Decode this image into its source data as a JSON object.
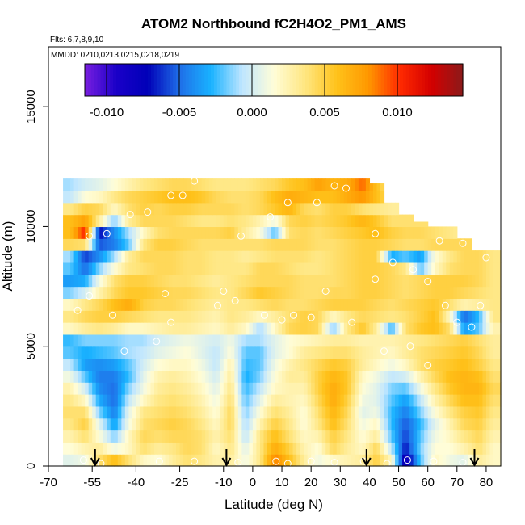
{
  "chart_data": {
    "type": "heatmap",
    "title": "ATOM2 Northbound fC2H4O2_PM1_AMS",
    "flights_label": "Flts: 6,7,8,9,10",
    "dates_label": "MMDD: 0210,0213,0215,0218,0219",
    "xlabel": "Latitude (deg N)",
    "ylabel": "Altitude (m)",
    "xlim": [
      -70,
      85
    ],
    "ylim": [
      0,
      17500
    ],
    "x_tick_labels": [
      "-70",
      "-55",
      "-40",
      "-25",
      "-10",
      "0",
      "10",
      "20",
      "30",
      "40",
      "50",
      "60",
      "70",
      "80"
    ],
    "x_tick_values": [
      -70,
      -55,
      -40,
      -25,
      -10,
      0,
      10,
      20,
      30,
      40,
      50,
      60,
      70,
      80
    ],
    "y_tick_labels": [
      "0",
      "5000",
      "10000",
      "15000"
    ],
    "y_tick_values": [
      0,
      5000,
      10000,
      15000
    ],
    "colorbar": {
      "range": [
        -0.0115,
        0.0145
      ],
      "tick_labels": [
        "-0.010",
        "-0.005",
        "0.000",
        "0.005",
        "0.010"
      ],
      "tick_values": [
        -0.01,
        -0.005,
        0.0,
        0.005,
        0.01
      ],
      "colors": [
        "#7a1fe0",
        "#1a00c8",
        "#0000b8",
        "#1f6fe8",
        "#19b2ff",
        "#bfe6ff",
        "#fffdd8",
        "#ffe680",
        "#ffc21a",
        "#ff9800",
        "#ff2a00",
        "#d40000",
        "#8b1a1a"
      ]
    },
    "altitude_levels_m": [
      250,
      750,
      1250,
      1750,
      2250,
      2750,
      3250,
      3750,
      4250,
      4750,
      5250,
      5750,
      6250,
      6750,
      7250,
      7750,
      8250,
      8750,
      9250,
      9750,
      10250,
      10750,
      11250,
      11750
    ],
    "latitude_bins": [
      -62.5,
      -57.5,
      -52.5,
      -47.5,
      -42.5,
      -37.5,
      -32.5,
      -27.5,
      -22.5,
      -17.5,
      -12.5,
      -7.5,
      -2.5,
      2.5,
      7.5,
      12.5,
      17.5,
      22.5,
      27.5,
      32.5,
      37.5,
      42.5,
      47.5,
      52.5,
      57.5,
      62.5,
      67.5,
      72.5,
      77.5,
      82.5
    ],
    "grid_values": [
      [
        0.0005,
        0.001,
        0.004,
        0.006,
        0.004,
        0.002,
        0.0015,
        0.003,
        0.004,
        0.0035,
        0.0025,
        0.003,
        0.001,
        0.0035,
        0.0085,
        0.006,
        0.003,
        0.001,
        0.002,
        0.0025,
        0.003,
        0.005,
        0.002,
        -0.009,
        -0.002,
        0.002,
        0.001,
        0.0005,
        0.003,
        0.002
      ],
      [
        0.0015,
        0.0025,
        0.003,
        0.001,
        0.002,
        0.004,
        0.003,
        0.0035,
        0.0045,
        0.004,
        0.002,
        0.0035,
        0.0005,
        0.0035,
        0.007,
        0.005,
        0.0025,
        0.0015,
        0.0045,
        0.003,
        0.002,
        0.0045,
        -0.0005,
        -0.007,
        -0.0015,
        0.0015,
        0.0015,
        0.0025,
        0.004,
        0.002
      ],
      [
        0.0025,
        0.004,
        0.0015,
        -0.0015,
        0.002,
        0.0045,
        0.004,
        0.0045,
        0.0045,
        0.004,
        0.0025,
        0.004,
        -0.0005,
        0.0035,
        0.006,
        0.004,
        0.002,
        0.0025,
        0.005,
        0.0035,
        0.0015,
        0.003,
        -0.002,
        -0.006,
        -0.002,
        0.001,
        0.002,
        0.0035,
        0.0045,
        0.0025
      ],
      [
        0.0035,
        0.005,
        0.0005,
        -0.0035,
        0.001,
        0.004,
        0.0045,
        0.005,
        0.0045,
        0.0035,
        0.002,
        0.0045,
        -0.001,
        0.0025,
        0.005,
        0.0035,
        0.0015,
        0.0035,
        0.006,
        0.004,
        0.001,
        0.002,
        -0.0025,
        -0.0055,
        -0.0025,
        0.0005,
        0.0025,
        0.0045,
        0.005,
        0.003
      ],
      [
        0.004,
        0.004,
        -0.0015,
        -0.0045,
        0.0005,
        0.0035,
        0.004,
        0.0045,
        0.004,
        0.003,
        0.0015,
        0.0045,
        -0.0015,
        0.0015,
        0.004,
        0.003,
        0.0015,
        0.004,
        0.0065,
        0.0045,
        0.0005,
        0.001,
        -0.0025,
        -0.0045,
        -0.0015,
        0.0015,
        0.0035,
        0.005,
        0.0055,
        0.0035
      ],
      [
        0.0035,
        0.002,
        -0.003,
        -0.005,
        -0.0005,
        0.002,
        0.0035,
        0.004,
        0.0035,
        0.0025,
        0.001,
        0.004,
        -0.002,
        0.0005,
        0.003,
        0.0025,
        0.002,
        0.0045,
        0.007,
        0.005,
        0.001,
        0.0005,
        -0.002,
        -0.0035,
        -0.0005,
        0.0025,
        0.0045,
        0.006,
        0.006,
        0.004
      ],
      [
        0.0025,
        0.0,
        -0.004,
        -0.005,
        -0.0015,
        0.001,
        0.003,
        0.0035,
        0.003,
        0.002,
        0.0005,
        0.0035,
        -0.0025,
        -0.0005,
        0.002,
        0.0025,
        0.0025,
        0.005,
        0.007,
        0.0055,
        0.0015,
        0.0005,
        -0.0015,
        -0.002,
        0.001,
        0.0035,
        0.0055,
        0.0065,
        0.0065,
        0.0045
      ],
      [
        0.001,
        -0.002,
        -0.0045,
        -0.0045,
        -0.0025,
        0.0005,
        0.0025,
        0.003,
        0.0025,
        0.0015,
        0.0,
        0.003,
        -0.003,
        -0.0015,
        0.0015,
        0.003,
        0.003,
        0.005,
        0.0065,
        0.0055,
        0.002,
        0.001,
        -0.0005,
        0.0,
        0.0025,
        0.0045,
        0.006,
        0.0065,
        0.006,
        0.004
      ],
      [
        -0.0005,
        -0.0035,
        -0.004,
        -0.0035,
        -0.002,
        0.0,
        0.0015,
        0.002,
        0.002,
        0.001,
        -0.0005,
        0.0025,
        -0.0025,
        -0.002,
        0.001,
        0.0025,
        0.0035,
        0.0045,
        0.0055,
        0.005,
        0.003,
        0.002,
        0.001,
        0.002,
        0.004,
        0.005,
        0.0055,
        0.006,
        0.005,
        0.0035
      ],
      [
        -0.002,
        -0.003,
        -0.0025,
        -0.002,
        -0.001,
        -0.0005,
        0.0005,
        0.001,
        0.0015,
        0.0005,
        -0.0005,
        0.0015,
        -0.002,
        -0.002,
        0.0005,
        0.0015,
        0.003,
        0.0035,
        0.004,
        0.004,
        0.003,
        0.0025,
        0.002,
        0.003,
        0.004,
        0.0045,
        0.005,
        0.0055,
        0.0045,
        0.003
      ],
      [
        -0.0025,
        -0.0015,
        -0.0015,
        -0.0015,
        -0.001,
        -0.001,
        0.0,
        0.0005,
        0.001,
        0.0005,
        0.0,
        0.001,
        -0.001,
        -0.001,
        0.0005,
        0.0015,
        0.002,
        0.0025,
        0.003,
        0.003,
        0.0025,
        0.0025,
        0.0025,
        0.003,
        0.0035,
        0.004,
        0.0045,
        0.005,
        0.004,
        0.003
      ],
      [
        0.002,
        0.003,
        0.0035,
        0.003,
        0.002,
        0.002,
        0.0025,
        0.003,
        0.003,
        0.0025,
        0.002,
        0.003,
        0.002,
        -0.001,
        0.002,
        0.0045,
        0.005,
        0.0045,
        -0.0015,
        0.0035,
        0.0055,
        0.003,
        -0.0025,
        0.004,
        0.0055,
        0.006,
        0.004,
        -0.0035,
        -0.002,
        0.0025
      ],
      [
        0.0035,
        0.0045,
        0.005,
        0.005,
        0.0045,
        0.004,
        0.0035,
        0.0035,
        0.0035,
        0.003,
        0.0025,
        0.0035,
        0.003,
        0.002,
        0.003,
        0.004,
        0.005,
        0.0045,
        0.002,
        0.0035,
        0.0045,
        0.004,
        0.0035,
        0.004,
        0.005,
        0.006,
        0.002,
        -0.005,
        -0.0025,
        0.0035
      ],
      [
        0.002,
        0.0035,
        0.0045,
        0.006,
        0.007,
        0.005,
        0.0045,
        0.0045,
        0.004,
        0.0035,
        0.003,
        0.0035,
        0.0035,
        0.004,
        0.0045,
        0.004,
        0.004,
        0.0045,
        0.005,
        0.005,
        0.005,
        0.0045,
        0.004,
        0.0045,
        0.005,
        0.0055,
        0.004,
        0.0025,
        0.003,
        0.0035
      ],
      [
        -0.0015,
        0.0,
        0.0025,
        0.0045,
        0.0055,
        0.0055,
        0.005,
        0.0045,
        0.0045,
        0.004,
        0.0035,
        0.0035,
        0.0045,
        0.0055,
        0.005,
        0.0045,
        0.004,
        0.004,
        0.0045,
        0.0045,
        0.005,
        0.005,
        0.0045,
        0.004,
        0.0045,
        0.005,
        0.005,
        0.0045,
        0.004,
        0.0035
      ],
      [
        -0.0035,
        -0.003,
        0.001,
        0.004,
        0.005,
        0.005,
        0.0045,
        0.004,
        0.004,
        0.0035,
        0.003,
        0.0035,
        0.004,
        0.0045,
        0.0045,
        0.0045,
        0.004,
        0.004,
        0.004,
        0.0045,
        0.005,
        0.005,
        0.0045,
        0.004,
        0.0045,
        0.005,
        0.005,
        0.005,
        0.0045,
        0.0035
      ],
      [
        -0.002,
        -0.005,
        -0.0015,
        0.0015,
        0.0035,
        0.004,
        0.0045,
        0.0045,
        0.004,
        0.004,
        0.0035,
        0.0035,
        0.0035,
        0.0045,
        0.0045,
        0.004,
        0.0035,
        0.0035,
        0.004,
        0.0045,
        0.005,
        0.005,
        0.0045,
        0.0035,
        -0.002,
        0.002,
        0.004,
        0.0045,
        0.0045,
        0.0035
      ],
      [
        -0.001,
        -0.006,
        -0.004,
        -0.001,
        0.003,
        0.0045,
        0.0045,
        0.0045,
        0.004,
        0.004,
        0.0035,
        0.0035,
        0.003,
        0.0035,
        0.004,
        0.004,
        0.004,
        0.0035,
        0.004,
        0.0045,
        0.005,
        0.005,
        -0.003,
        -0.002,
        -0.0035,
        0.0015,
        0.0035,
        0.0045,
        0.0045,
        0.0035
      ],
      [
        0.0045,
        0.004,
        -0.0055,
        -0.0045,
        -0.002,
        0.0035,
        0.005,
        0.005,
        0.0045,
        0.004,
        0.004,
        0.004,
        0.004,
        0.004,
        0.0045,
        0.0045,
        0.0045,
        0.004,
        0.004,
        0.0045,
        0.005,
        0.005,
        0.0045,
        0.004,
        0.004,
        0.0045,
        0.0045,
        0.0045,
        0.0045,
        0.0035
      ],
      [
        0.006,
        0.0105,
        -0.007,
        -0.004,
        -0.001,
        0.002,
        0.004,
        0.0045,
        0.0045,
        0.0045,
        0.0045,
        0.005,
        0.003,
        0.0015,
        -0.002,
        0.004,
        0.0045,
        0.004,
        0.0045,
        0.005,
        0.0055,
        0.006,
        0.005,
        0.0045,
        0.0045,
        0.004,
        0.0035,
        0.003,
        0.003,
        0.003
      ],
      [
        0.006,
        0.0075,
        0.003,
        -0.0015,
        0.003,
        0.0045,
        0.0045,
        0.0045,
        0.004,
        0.0035,
        0.0035,
        0.004,
        0.0035,
        0.0025,
        0.001,
        0.0045,
        0.005,
        0.0045,
        0.005,
        0.0055,
        0.0065,
        0.0055,
        0.004,
        0.004,
        0.004,
        0.004,
        0.004,
        0.004,
        0.004,
        0.004
      ],
      [
        0.0035,
        0.005,
        0.0045,
        0.002,
        0.004,
        0.005,
        0.0045,
        0.005,
        0.005,
        0.0045,
        0.0045,
        0.0045,
        0.004,
        0.0045,
        0.0055,
        0.0065,
        0.0045,
        0.004,
        0.005,
        0.005,
        0.004,
        0.0035,
        0.003,
        0.003,
        0.003,
        0.003,
        0.003,
        0.003,
        0.003,
        0.003
      ],
      [
        -0.0005,
        0.0015,
        0.002,
        0.0035,
        0.0045,
        0.005,
        0.0055,
        0.006,
        0.006,
        0.0055,
        0.0045,
        0.004,
        0.004,
        0.0045,
        0.006,
        0.007,
        0.0065,
        0.006,
        0.006,
        0.007,
        0.008,
        0.006,
        0.004,
        0.003,
        0.003,
        0.003,
        0.003,
        0.003,
        0.003,
        0.003
      ],
      [
        -0.001,
        0.0,
        0.0005,
        0.0015,
        0.0025,
        0.0035,
        0.004,
        0.0045,
        0.0045,
        0.004,
        0.0035,
        0.0035,
        0.0035,
        0.004,
        0.0045,
        0.0055,
        0.006,
        0.0075,
        0.0065,
        0.007,
        0.009,
        0.006,
        0.003,
        0.002,
        0.002,
        0.002,
        0.002,
        0.002,
        0.002,
        0.002
      ]
    ],
    "altitude_ceilings_m": [
      13000,
      13000,
      13000,
      13000,
      13000,
      13000,
      13000,
      13000,
      13000,
      13000,
      13000,
      13000,
      12000,
      12000,
      12000,
      12000,
      12000,
      12000,
      12000,
      12000,
      12000,
      11800,
      11000,
      10500,
      10200,
      10000,
      10000,
      9500,
      9000,
      9000
    ],
    "samples": [
      {
        "lat": -58,
        "alt": 250
      },
      {
        "lat": -52,
        "alt": 100
      },
      {
        "lat": -32,
        "alt": 200
      },
      {
        "lat": -20,
        "alt": 200
      },
      {
        "lat": -5,
        "alt": 150
      },
      {
        "lat": 8,
        "alt": 200
      },
      {
        "lat": 12,
        "alt": 100
      },
      {
        "lat": 20,
        "alt": 200
      },
      {
        "lat": 28,
        "alt": 150
      },
      {
        "lat": 38,
        "alt": 200
      },
      {
        "lat": 46,
        "alt": 100
      },
      {
        "lat": 53,
        "alt": 250
      },
      {
        "lat": 62,
        "alt": 200
      },
      {
        "lat": 72,
        "alt": 150
      },
      {
        "lat": -44,
        "alt": 4800
      },
      {
        "lat": -33,
        "alt": 5200
      },
      {
        "lat": -48,
        "alt": 6300
      },
      {
        "lat": -56,
        "alt": 7100
      },
      {
        "lat": -60,
        "alt": 6500
      },
      {
        "lat": -28,
        "alt": 6000
      },
      {
        "lat": -12,
        "alt": 6700
      },
      {
        "lat": -6,
        "alt": 6900
      },
      {
        "lat": 4,
        "alt": 6300
      },
      {
        "lat": 10,
        "alt": 6100
      },
      {
        "lat": 14,
        "alt": 6300
      },
      {
        "lat": 20,
        "alt": 6200
      },
      {
        "lat": 34,
        "alt": 6000
      },
      {
        "lat": 45,
        "alt": 4800
      },
      {
        "lat": 54,
        "alt": 5000
      },
      {
        "lat": 60,
        "alt": 4200
      },
      {
        "lat": 70,
        "alt": 6000
      },
      {
        "lat": 75,
        "alt": 5800
      },
      {
        "lat": 78,
        "alt": 6700
      },
      {
        "lat": 66,
        "alt": 6700
      },
      {
        "lat": -50,
        "alt": 9700
      },
      {
        "lat": -56,
        "alt": 9600
      },
      {
        "lat": -42,
        "alt": 10500
      },
      {
        "lat": -36,
        "alt": 10600
      },
      {
        "lat": -28,
        "alt": 11300
      },
      {
        "lat": -24,
        "alt": 11300
      },
      {
        "lat": -20,
        "alt": 11900
      },
      {
        "lat": -4,
        "alt": 9600
      },
      {
        "lat": 6,
        "alt": 10400
      },
      {
        "lat": 12,
        "alt": 11000
      },
      {
        "lat": 22,
        "alt": 11000
      },
      {
        "lat": 28,
        "alt": 11700
      },
      {
        "lat": 32,
        "alt": 11600
      },
      {
        "lat": 42,
        "alt": 9700
      },
      {
        "lat": 48,
        "alt": 8500
      },
      {
        "lat": 55,
        "alt": 8200
      },
      {
        "lat": 64,
        "alt": 9400
      },
      {
        "lat": 72,
        "alt": 9300
      },
      {
        "lat": 80,
        "alt": 8700
      },
      {
        "lat": 42,
        "alt": 7800
      },
      {
        "lat": 25,
        "alt": 7300
      },
      {
        "lat": -30,
        "alt": 7200
      },
      {
        "lat": -10,
        "alt": 7300
      },
      {
        "lat": 60,
        "alt": 7700
      }
    ],
    "arrows_lat": [
      -54,
      -9,
      39,
      76
    ]
  }
}
